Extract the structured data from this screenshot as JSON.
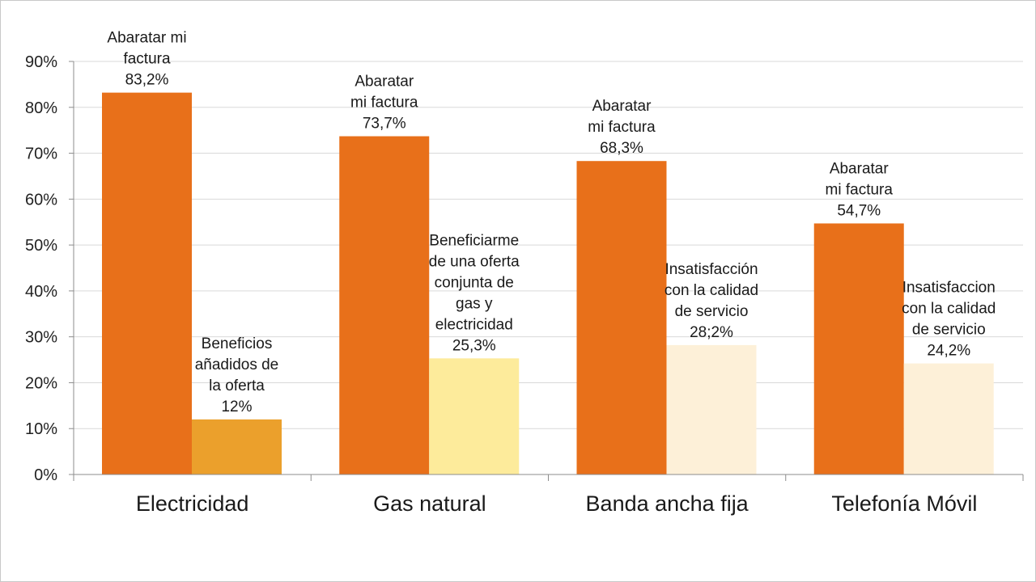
{
  "chart_data": {
    "type": "bar",
    "title": "",
    "xlabel": "",
    "ylabel": "",
    "ylim": [
      0,
      90
    ],
    "yticks": [
      "0%",
      "10%",
      "20%",
      "30%",
      "40%",
      "50%",
      "60%",
      "70%",
      "80%",
      "90%"
    ],
    "grid": true,
    "legend": "none",
    "categories": [
      "Electricidad",
      "Gas natural",
      "Banda ancha fija",
      "Telefonía Móvil"
    ],
    "bars": [
      {
        "category_index": 0,
        "slot": 0,
        "value": 83.2,
        "color": "#e8701a",
        "label": [
          "Abaratar mi",
          "factura",
          "83,2%"
        ]
      },
      {
        "category_index": 0,
        "slot": 1,
        "value": 12.0,
        "color": "#eba02c",
        "label": [
          "Beneficios",
          "añadidos de",
          "la oferta",
          "12%"
        ]
      },
      {
        "category_index": 1,
        "slot": 0,
        "value": 73.7,
        "color": "#e8701a",
        "label": [
          "Abaratar",
          "mi factura",
          "73,7%"
        ]
      },
      {
        "category_index": 1,
        "slot": 1,
        "value": 25.3,
        "color": "#fdeb9b",
        "label": [
          "Beneficiarme",
          "de una oferta",
          "conjunta de",
          "gas y",
          "electricidad",
          "25,3%"
        ]
      },
      {
        "category_index": 2,
        "slot": 0,
        "value": 68.3,
        "color": "#e8701a",
        "label": [
          "Abaratar",
          "mi factura",
          "68,3%"
        ]
      },
      {
        "category_index": 2,
        "slot": 1,
        "value": 28.2,
        "color": "#fdf0d8",
        "label": [
          "Insatisfacción",
          "con la calidad",
          "de servicio",
          "28;2%"
        ]
      },
      {
        "category_index": 3,
        "slot": 0,
        "value": 54.7,
        "color": "#e8701a",
        "label": [
          "Abaratar",
          "mi factura",
          "54,7%"
        ]
      },
      {
        "category_index": 3,
        "slot": 1,
        "value": 24.2,
        "color": "#fdf0d8",
        "label": [
          "Insatisfaccion",
          "con la calidad",
          "de servicio",
          "24,2%"
        ]
      }
    ]
  }
}
